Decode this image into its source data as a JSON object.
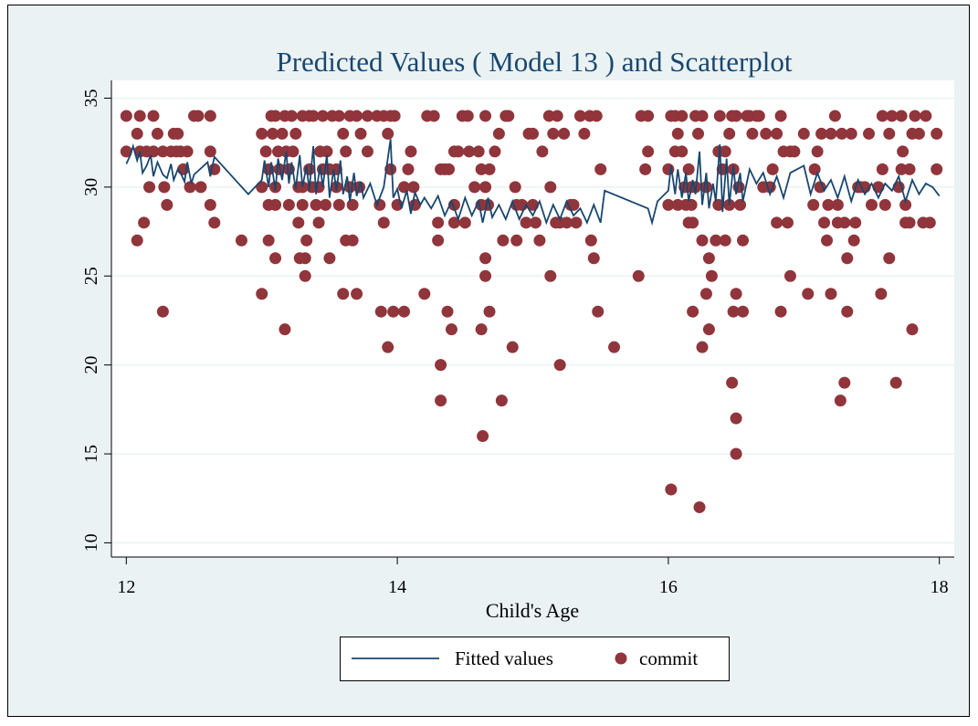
{
  "chart_data": {
    "type": "scatter",
    "title": "Predicted Values ( Model 13 ) and Scatterplot",
    "x_label": "Child's Age",
    "xlim": [
      11.89,
      18.11
    ],
    "ylim": [
      9.2,
      36.0
    ],
    "xticks": [
      12,
      14,
      16,
      18
    ],
    "yticks": [
      10,
      15,
      20,
      25,
      30,
      35
    ],
    "grid": true,
    "legend": "bottom",
    "series": [
      {
        "name": "Fitted values",
        "type": "line",
        "color": "#1a476f",
        "x": [
          12.0,
          12.03,
          12.05,
          12.08,
          12.1,
          12.12,
          12.15,
          12.18,
          12.2,
          12.23,
          12.27,
          12.3,
          12.33,
          12.35,
          12.38,
          12.4,
          12.43,
          12.45,
          12.48,
          12.5,
          12.6,
          12.62,
          12.65,
          12.9,
          13.0,
          13.02,
          13.05,
          13.07,
          13.1,
          13.12,
          13.15,
          13.18,
          13.2,
          13.22,
          13.25,
          13.28,
          13.3,
          13.33,
          13.35,
          13.38,
          13.4,
          13.43,
          13.45,
          13.48,
          13.5,
          13.53,
          13.55,
          13.58,
          13.6,
          13.63,
          13.65,
          13.68,
          13.7,
          13.73,
          13.75,
          13.8,
          13.85,
          13.9,
          13.95,
          13.97,
          14.0,
          14.03,
          14.07,
          14.1,
          14.13,
          14.17,
          14.2,
          14.25,
          14.3,
          14.35,
          14.4,
          14.45,
          14.5,
          14.55,
          14.6,
          14.63,
          14.67,
          14.7,
          14.75,
          14.8,
          14.85,
          14.9,
          14.95,
          15.0,
          15.05,
          15.1,
          15.15,
          15.2,
          15.25,
          15.3,
          15.35,
          15.4,
          15.45,
          15.5,
          15.53,
          15.85,
          15.88,
          15.92,
          16.0,
          16.02,
          16.05,
          16.07,
          16.1,
          16.13,
          16.15,
          16.18,
          16.2,
          16.23,
          16.25,
          16.28,
          16.3,
          16.33,
          16.35,
          16.38,
          16.4,
          16.43,
          16.45,
          16.48,
          16.5,
          16.53,
          16.55,
          16.6,
          16.65,
          16.7,
          16.75,
          16.8,
          16.85,
          16.9,
          17.0,
          17.05,
          17.1,
          17.15,
          17.2,
          17.25,
          17.3,
          17.35,
          17.4,
          17.45,
          17.5,
          17.55,
          17.6,
          17.65,
          17.7,
          17.75,
          17.8,
          17.85,
          17.9,
          17.95,
          18.0
        ],
        "values": [
          31.3,
          31.8,
          32.3,
          31.5,
          32.0,
          30.8,
          31.2,
          31.8,
          30.6,
          31.4,
          30.7,
          30.5,
          31.3,
          30.4,
          31.0,
          30.8,
          30.3,
          31.4,
          30.2,
          30.7,
          31.4,
          30.6,
          31.7,
          29.6,
          30.4,
          31.5,
          30.0,
          31.4,
          29.8,
          31.6,
          30.4,
          32.0,
          30.2,
          31.4,
          29.9,
          31.8,
          30.0,
          31.2,
          29.8,
          32.3,
          29.6,
          31.2,
          30.0,
          31.8,
          29.4,
          31.0,
          29.8,
          31.5,
          29.6,
          30.6,
          29.2,
          30.8,
          29.5,
          30.3,
          29.4,
          30.2,
          29.0,
          30.0,
          32.7,
          29.4,
          29.9,
          28.8,
          29.8,
          28.5,
          29.7,
          29.0,
          29.4,
          28.8,
          29.5,
          28.4,
          29.2,
          28.2,
          29.4,
          28.4,
          29.2,
          28.0,
          29.4,
          28.3,
          29.0,
          28.2,
          29.2,
          28.2,
          29.0,
          28.4,
          29.2,
          28.0,
          29.0,
          28.2,
          29.2,
          28.4,
          28.8,
          28.0,
          29.0,
          28.0,
          29.8,
          28.8,
          28.0,
          29.2,
          29.8,
          31.2,
          29.6,
          31.0,
          29.4,
          30.8,
          29.2,
          30.4,
          29.6,
          32.0,
          29.0,
          30.8,
          28.8,
          30.2,
          29.2,
          32.4,
          28.6,
          31.6,
          29.0,
          31.2,
          29.6,
          30.8,
          29.2,
          31.0,
          30.2,
          30.8,
          29.6,
          30.6,
          29.4,
          30.8,
          31.2,
          29.6,
          30.8,
          29.8,
          30.4,
          29.4,
          30.6,
          29.2,
          30.4,
          29.6,
          30.2,
          29.4,
          30.2,
          29.8,
          30.6,
          29.2,
          30.4,
          29.6,
          30.2,
          30.0,
          29.5
        ]
      },
      {
        "name": "commit",
        "type": "scatter",
        "color": "#90353b",
        "x": [
          12.0,
          12.0,
          12.08,
          12.08,
          12.1,
          12.1,
          12.13,
          12.15,
          12.17,
          12.2,
          12.2,
          12.23,
          12.27,
          12.27,
          12.28,
          12.3,
          12.33,
          12.35,
          12.37,
          12.38,
          12.4,
          12.42,
          12.45,
          12.47,
          12.5,
          12.53,
          12.55,
          12.62,
          12.62,
          12.62,
          12.65,
          12.65,
          12.85,
          13.0,
          13.0,
          13.0,
          13.03,
          13.05,
          13.05,
          13.05,
          13.07,
          13.08,
          13.1,
          13.1,
          13.1,
          13.1,
          13.12,
          13.13,
          13.15,
          13.17,
          13.17,
          13.18,
          13.2,
          13.2,
          13.22,
          13.23,
          13.25,
          13.27,
          13.27,
          13.28,
          13.3,
          13.3,
          13.3,
          13.32,
          13.32,
          13.33,
          13.35,
          13.35,
          13.37,
          13.38,
          13.4,
          13.42,
          13.42,
          13.43,
          13.45,
          13.45,
          13.47,
          13.48,
          13.5,
          13.5,
          13.52,
          13.55,
          13.55,
          13.57,
          13.57,
          13.6,
          13.6,
          13.62,
          13.62,
          13.65,
          13.65,
          13.67,
          13.67,
          13.7,
          13.7,
          13.72,
          13.73,
          13.78,
          13.78,
          13.85,
          13.87,
          13.88,
          13.9,
          13.9,
          13.93,
          13.93,
          13.95,
          13.95,
          13.97,
          13.98,
          14.0,
          14.05,
          14.05,
          14.08,
          14.1,
          14.12,
          14.13,
          14.2,
          14.22,
          14.27,
          14.3,
          14.3,
          14.32,
          14.32,
          14.32,
          14.35,
          14.37,
          14.38,
          14.4,
          14.42,
          14.42,
          14.42,
          14.45,
          14.48,
          14.5,
          14.52,
          14.53,
          14.57,
          14.6,
          14.62,
          14.62,
          14.62,
          14.63,
          14.65,
          14.65,
          14.65,
          14.65,
          14.67,
          14.68,
          14.68,
          14.72,
          14.75,
          14.77,
          14.78,
          14.8,
          14.82,
          14.85,
          14.87,
          14.88,
          14.88,
          14.92,
          14.95,
          14.97,
          15.0,
          15.0,
          15.02,
          15.05,
          15.07,
          15.12,
          15.13,
          15.13,
          15.15,
          15.17,
          15.18,
          15.2,
          15.2,
          15.23,
          15.25,
          15.28,
          15.3,
          15.32,
          15.35,
          15.38,
          15.42,
          15.43,
          15.45,
          15.47,
          15.48,
          15.5,
          15.6,
          15.78,
          15.8,
          15.85,
          15.85,
          15.83,
          16.0,
          16.0,
          16.02,
          16.02,
          16.05,
          16.05,
          16.07,
          16.07,
          16.1,
          16.1,
          16.12,
          16.13,
          16.15,
          16.15,
          16.17,
          16.17,
          16.18,
          16.18,
          16.2,
          16.2,
          16.22,
          16.23,
          16.25,
          16.25,
          16.25,
          16.28,
          16.28,
          16.3,
          16.3,
          16.32,
          16.35,
          16.37,
          16.37,
          16.38,
          16.4,
          16.42,
          16.42,
          16.45,
          16.45,
          16.47,
          16.47,
          16.48,
          16.48,
          16.5,
          16.5,
          16.5,
          16.5,
          16.52,
          16.53,
          16.55,
          16.55,
          16.58,
          16.6,
          16.62,
          16.65,
          16.67,
          16.7,
          16.72,
          16.75,
          16.77,
          16.8,
          16.8,
          16.83,
          16.83,
          16.85,
          16.88,
          16.9,
          16.9,
          16.93,
          17.0,
          17.03,
          17.07,
          17.08,
          17.1,
          17.12,
          17.13,
          17.15,
          17.17,
          17.18,
          17.2,
          17.2,
          17.23,
          17.25,
          17.25,
          17.27,
          17.28,
          17.3,
          17.3,
          17.32,
          17.32,
          17.35,
          17.37,
          17.38,
          17.4,
          17.42,
          17.45,
          17.48,
          17.5,
          17.55,
          17.57,
          17.58,
          17.58,
          17.6,
          17.63,
          17.63,
          17.65,
          17.68,
          17.7,
          17.72,
          17.72,
          17.73,
          17.75,
          17.75,
          17.78,
          17.78,
          17.8,
          17.8,
          17.82,
          17.85,
          17.88,
          17.9,
          17.93,
          17.98,
          17.98
        ],
        "values": [
          34,
          32,
          27,
          33,
          34,
          32,
          28,
          32,
          30,
          32,
          34,
          33,
          32,
          23,
          30,
          29,
          32,
          33,
          32,
          33,
          32,
          31,
          32,
          30,
          34,
          34,
          30,
          34,
          32,
          29,
          31,
          28,
          27,
          33,
          30,
          24,
          32,
          31,
          29,
          27,
          34,
          33,
          34,
          30,
          29,
          26,
          32,
          31,
          33,
          34,
          22,
          32,
          31,
          29,
          34,
          32,
          33,
          30,
          28,
          26,
          34,
          30,
          29,
          26,
          25,
          27,
          34,
          31,
          30,
          34,
          29,
          30,
          28,
          32,
          34,
          31,
          29,
          32,
          31,
          26,
          34,
          31,
          30,
          34,
          29,
          33,
          24,
          32,
          27,
          34,
          30,
          29,
          27,
          34,
          24,
          30,
          33,
          34,
          32,
          34,
          29,
          23,
          34,
          28,
          33,
          21,
          34,
          31,
          23,
          34,
          29,
          30,
          23,
          31,
          32,
          30,
          29,
          24,
          34,
          34,
          28,
          27,
          31,
          20,
          18,
          31,
          23,
          31,
          22,
          32,
          29,
          28,
          32,
          34,
          28,
          34,
          32,
          30,
          32,
          31,
          29,
          22,
          16,
          34,
          30,
          26,
          25,
          29,
          31,
          23,
          32,
          33,
          18,
          27,
          34,
          34,
          21,
          30,
          29,
          27,
          29,
          28,
          33,
          33,
          29,
          28,
          27,
          32,
          34,
          30,
          25,
          33,
          28,
          34,
          28,
          20,
          33,
          28,
          29,
          29,
          28,
          34,
          33,
          34,
          27,
          26,
          34,
          23,
          31,
          21,
          25,
          34,
          34,
          32,
          31,
          31,
          29,
          34,
          13,
          34,
          32,
          33,
          29,
          34,
          32,
          30,
          29,
          31,
          28,
          30,
          29,
          23,
          28,
          34,
          30,
          33,
          12,
          34,
          27,
          21,
          30,
          24,
          26,
          22,
          25,
          27,
          32,
          29,
          34,
          31,
          32,
          27,
          33,
          29,
          34,
          19,
          31,
          23,
          34,
          24,
          17,
          15,
          30,
          29,
          23,
          27,
          34,
          34,
          33,
          34,
          34,
          30,
          33,
          30,
          31,
          33,
          28,
          34,
          23,
          32,
          28,
          32,
          25,
          32,
          33,
          24,
          29,
          31,
          32,
          30,
          33,
          28,
          27,
          29,
          24,
          33,
          34,
          28,
          29,
          18,
          33,
          19,
          28,
          26,
          23,
          33,
          27,
          28,
          30,
          30,
          30,
          33,
          29,
          30,
          24,
          34,
          31,
          29,
          26,
          33,
          34,
          19,
          30,
          34,
          31,
          32,
          29,
          28,
          31,
          28,
          22,
          33,
          34,
          33,
          28,
          34,
          28,
          31,
          33
        ]
      }
    ]
  }
}
